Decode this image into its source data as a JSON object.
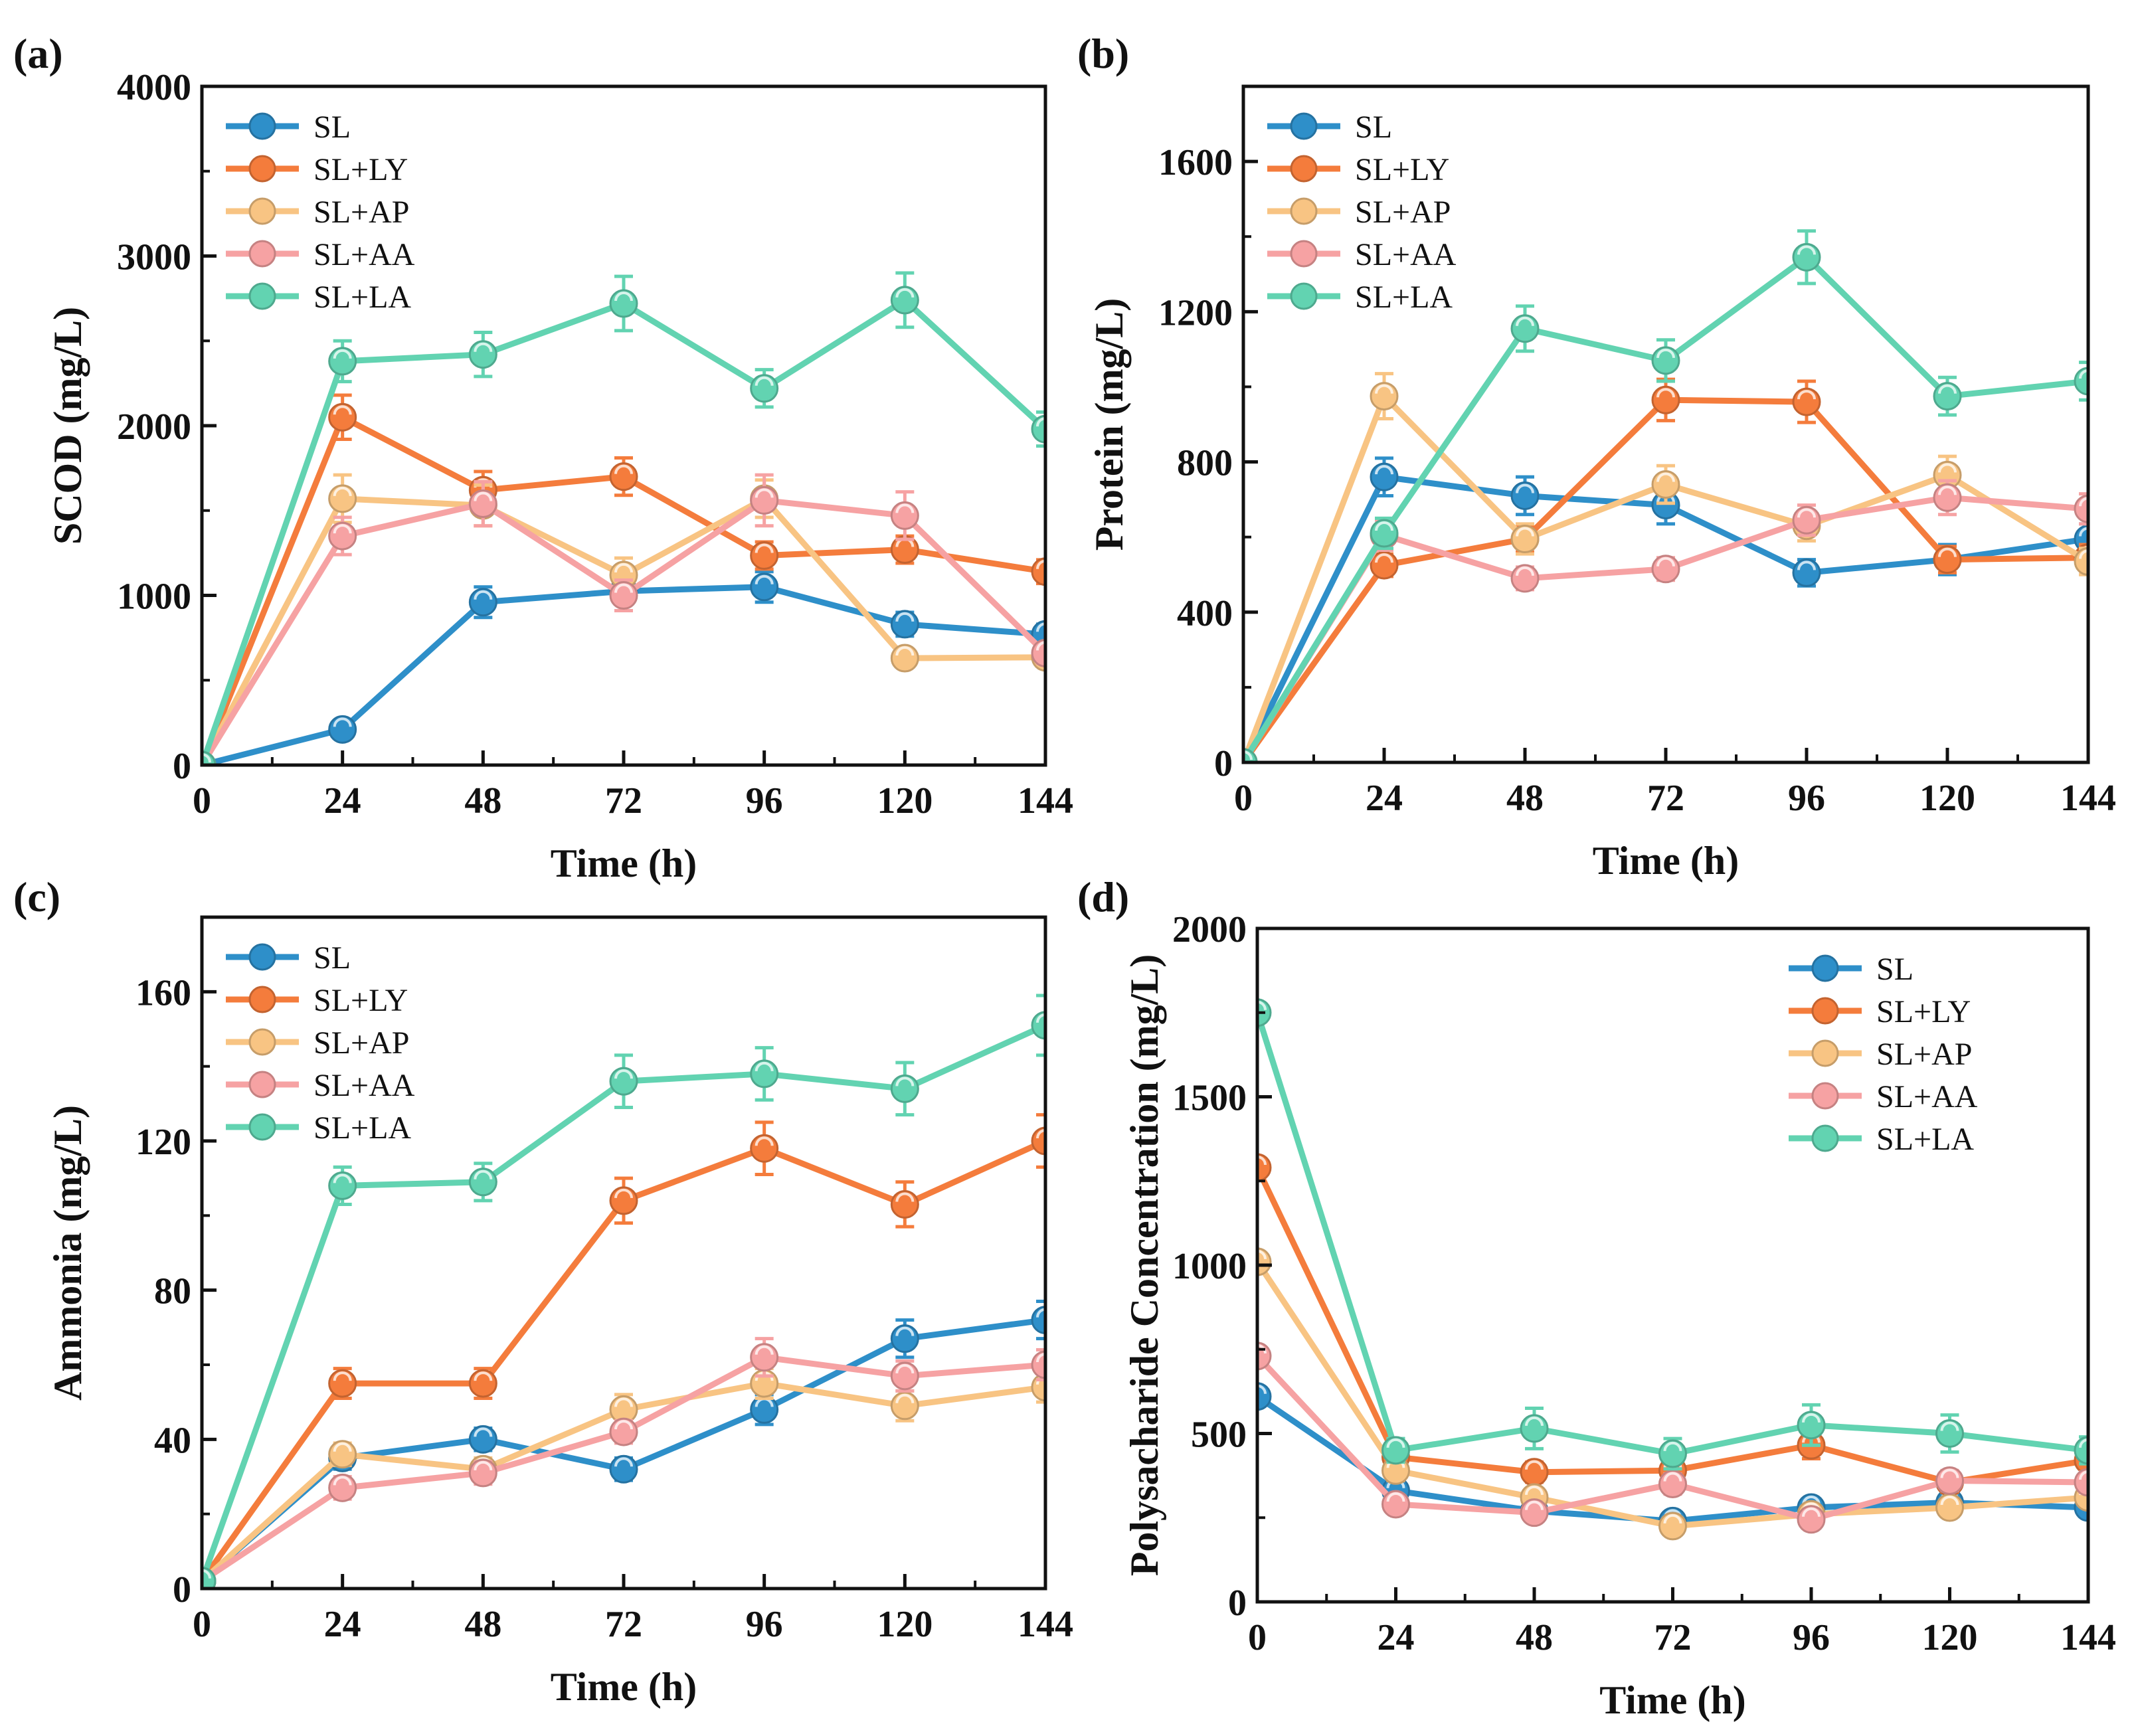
{
  "figure": {
    "series_colors": {
      "SL": "#2e8fc9",
      "SL+LY": "#f47c3c",
      "SL+AP": "#f8c483",
      "SL+AA": "#f6a2a3",
      "SL+LA": "#62d3b1"
    }
  },
  "chart_data": [
    {
      "panel": "(a)",
      "type": "line",
      "xlabel": "Time (h)",
      "ylabel": "SCOD (mg/L)",
      "x": [
        0,
        24,
        48,
        72,
        96,
        120,
        144
      ],
      "xlim": [
        0,
        144
      ],
      "ylim": [
        0,
        4000
      ],
      "yticks": [
        0,
        1000,
        2000,
        3000,
        4000
      ],
      "legend_position": "top-left",
      "series": [
        {
          "name": "SL",
          "values": [
            0,
            210,
            960,
            1025,
            1050,
            830,
            770
          ],
          "errors": [
            0,
            40,
            90,
            80,
            90,
            70,
            60
          ]
        },
        {
          "name": "SL+LY",
          "values": [
            0,
            2050,
            1620,
            1700,
            1235,
            1270,
            1140
          ],
          "errors": [
            0,
            130,
            110,
            110,
            80,
            80,
            70
          ]
        },
        {
          "name": "SL+AP",
          "values": [
            0,
            1570,
            1530,
            1120,
            1570,
            630,
            635
          ],
          "errors": [
            0,
            140,
            120,
            100,
            110,
            50,
            40
          ]
        },
        {
          "name": "SL+AA",
          "values": [
            0,
            1350,
            1540,
            1000,
            1560,
            1470,
            660
          ],
          "errors": [
            0,
            110,
            130,
            90,
            150,
            140,
            60
          ]
        },
        {
          "name": "SL+LA",
          "values": [
            0,
            2380,
            2420,
            2720,
            2220,
            2740,
            1980
          ],
          "errors": [
            0,
            120,
            130,
            160,
            110,
            160,
            100
          ]
        }
      ]
    },
    {
      "panel": "(b)",
      "type": "line",
      "xlabel": "Time (h)",
      "ylabel": "Protein (mg/L)",
      "x": [
        0,
        24,
        48,
        72,
        96,
        120,
        144
      ],
      "xlim": [
        0,
        144
      ],
      "ylim": [
        0,
        1800
      ],
      "yticks": [
        0,
        400,
        800,
        1200,
        1600
      ],
      "legend_position": "top-left",
      "series": [
        {
          "name": "SL",
          "values": [
            0,
            760,
            710,
            685,
            505,
            540,
            595
          ],
          "errors": [
            0,
            50,
            50,
            50,
            35,
            40,
            40
          ]
        },
        {
          "name": "SL+LY",
          "values": [
            0,
            525,
            595,
            965,
            960,
            540,
            545
          ],
          "errors": [
            0,
            30,
            35,
            55,
            55,
            35,
            35
          ]
        },
        {
          "name": "SL+AP",
          "values": [
            0,
            975,
            595,
            740,
            630,
            765,
            535
          ],
          "errors": [
            0,
            60,
            40,
            50,
            40,
            50,
            35
          ]
        },
        {
          "name": "SL+AA",
          "values": [
            0,
            605,
            490,
            515,
            645,
            705,
            675
          ],
          "errors": [
            0,
            40,
            30,
            30,
            40,
            45,
            40
          ]
        },
        {
          "name": "SL+LA",
          "values": [
            0,
            610,
            1155,
            1070,
            1345,
            975,
            1015
          ],
          "errors": [
            0,
            40,
            60,
            55,
            70,
            50,
            50
          ]
        }
      ]
    },
    {
      "panel": "(c)",
      "type": "line",
      "xlabel": "Time (h)",
      "ylabel": "Ammonia (mg/L)",
      "x": [
        0,
        24,
        48,
        72,
        96,
        120,
        144
      ],
      "xlim": [
        0,
        144
      ],
      "ylim": [
        0,
        180
      ],
      "yticks": [
        0,
        40,
        80,
        120,
        160
      ],
      "legend_position": "top-left",
      "series": [
        {
          "name": "SL",
          "values": [
            2,
            35,
            40,
            32,
            48,
            67,
            72
          ],
          "errors": [
            0,
            3,
            3,
            3,
            4,
            5,
            5
          ]
        },
        {
          "name": "SL+LY",
          "values": [
            2,
            55,
            55,
            104,
            118,
            103,
            120
          ],
          "errors": [
            0,
            4,
            4,
            6,
            7,
            6,
            7
          ]
        },
        {
          "name": "SL+AP",
          "values": [
            2,
            36,
            32,
            48,
            55,
            49,
            54
          ],
          "errors": [
            0,
            3,
            3,
            4,
            4,
            4,
            4
          ]
        },
        {
          "name": "SL+AA",
          "values": [
            2,
            27,
            31,
            42,
            62,
            57,
            60
          ],
          "errors": [
            0,
            3,
            3,
            3,
            5,
            4,
            4
          ]
        },
        {
          "name": "SL+LA",
          "values": [
            2,
            108,
            109,
            136,
            138,
            134,
            151
          ],
          "errors": [
            0,
            5,
            5,
            7,
            7,
            7,
            8
          ]
        }
      ]
    },
    {
      "panel": "(d)",
      "type": "line",
      "xlabel": "Time (h)",
      "ylabel": "Polysacharide Concentration (mg/L)",
      "x": [
        0,
        24,
        48,
        72,
        96,
        120,
        144
      ],
      "xlim": [
        0,
        144
      ],
      "ylim": [
        0,
        2000
      ],
      "yticks": [
        0,
        500,
        1000,
        1500,
        2000
      ],
      "legend_position": "top-right",
      "series": [
        {
          "name": "SL",
          "values": [
            610,
            330,
            270,
            240,
            280,
            295,
            280
          ],
          "errors": [
            0,
            25,
            20,
            20,
            25,
            25,
            20
          ]
        },
        {
          "name": "SL+LY",
          "values": [
            1290,
            430,
            385,
            390,
            465,
            355,
            420
          ],
          "errors": [
            0,
            35,
            30,
            30,
            40,
            30,
            35
          ]
        },
        {
          "name": "SL+AP",
          "values": [
            1010,
            390,
            310,
            225,
            260,
            280,
            310
          ],
          "errors": [
            0,
            30,
            25,
            20,
            20,
            25,
            25
          ]
        },
        {
          "name": "SL+AA",
          "values": [
            730,
            290,
            265,
            350,
            245,
            360,
            355
          ],
          "errors": [
            0,
            25,
            20,
            30,
            20,
            30,
            30
          ]
        },
        {
          "name": "SL+LA",
          "values": [
            1750,
            450,
            515,
            440,
            525,
            500,
            450
          ],
          "errors": [
            0,
            35,
            60,
            45,
            60,
            55,
            40
          ]
        }
      ]
    }
  ]
}
